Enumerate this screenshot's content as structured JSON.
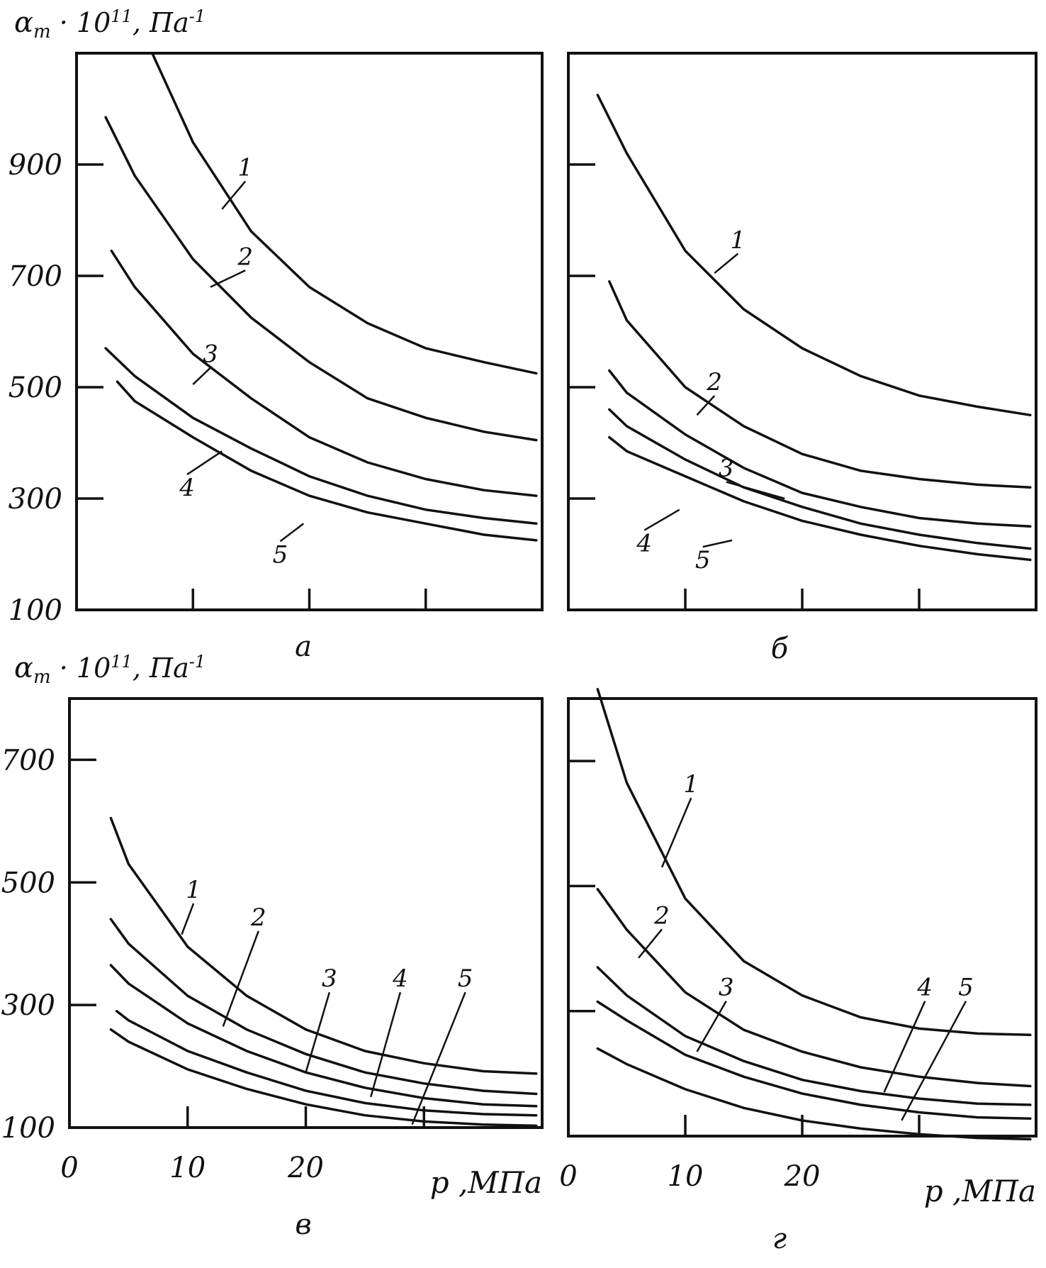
{
  "colors": {
    "ink": "#111111",
    "background": "#ffffff"
  },
  "y_axis_label": {
    "main": "α",
    "sub": "т",
    "mid": " · 10",
    "sup": "11",
    "unit": ", Па",
    "unit_sup": "-1"
  },
  "chart_data": [
    {
      "id": "a",
      "type": "line",
      "panel_label": "а",
      "xlim": [
        0,
        40
      ],
      "ylim": [
        100,
        1100
      ],
      "yticks": [
        100,
        300,
        500,
        700,
        900
      ],
      "ytick_labels": [
        "100",
        "300",
        "500",
        "700",
        "900"
      ],
      "xticks": [
        10,
        20,
        30
      ],
      "xtick_labels": [],
      "xlabel": "",
      "series": [
        {
          "name": "1",
          "x": [
            6.5,
            10,
            15,
            20,
            25,
            30,
            35,
            39.5
          ],
          "y": [
            1100,
            940,
            780,
            680,
            615,
            570,
            545,
            525
          ]
        },
        {
          "name": "2",
          "x": [
            2.5,
            5,
            10,
            15,
            20,
            25,
            30,
            35,
            39.5
          ],
          "y": [
            985,
            880,
            730,
            625,
            545,
            480,
            445,
            420,
            405
          ]
        },
        {
          "name": "3",
          "x": [
            3,
            5,
            10,
            15,
            20,
            25,
            30,
            35,
            39.5
          ],
          "y": [
            745,
            680,
            560,
            480,
            410,
            365,
            335,
            315,
            305
          ]
        },
        {
          "name": "4",
          "x": [
            2.5,
            5,
            10,
            15,
            20,
            25,
            30,
            35,
            39.5
          ],
          "y": [
            570,
            520,
            445,
            390,
            340,
            305,
            280,
            265,
            255
          ]
        },
        {
          "name": "5",
          "x": [
            3.5,
            5,
            10,
            15,
            20,
            25,
            30,
            35,
            39.5
          ],
          "y": [
            510,
            475,
            410,
            350,
            305,
            275,
            255,
            235,
            225
          ]
        }
      ]
    },
    {
      "id": "b",
      "type": "line",
      "panel_label": "б",
      "xlim": [
        0,
        40
      ],
      "ylim": [
        100,
        1100
      ],
      "yticks": [
        300,
        500,
        700,
        900
      ],
      "ytick_labels": [],
      "xticks": [
        10,
        20,
        30
      ],
      "xtick_labels": [],
      "xlabel": "",
      "series": [
        {
          "name": "1",
          "x": [
            2.5,
            5,
            10,
            15,
            20,
            25,
            30,
            35,
            39.5
          ],
          "y": [
            1025,
            920,
            745,
            640,
            570,
            520,
            485,
            465,
            450
          ]
        },
        {
          "name": "2",
          "x": [
            3.5,
            5,
            10,
            15,
            20,
            25,
            30,
            35,
            39.5
          ],
          "y": [
            690,
            620,
            500,
            430,
            380,
            350,
            335,
            325,
            320
          ]
        },
        {
          "name": "3",
          "x": [
            3.5,
            5,
            10,
            15,
            20,
            25,
            30,
            35,
            39.5
          ],
          "y": [
            530,
            490,
            415,
            355,
            310,
            285,
            265,
            255,
            250
          ]
        },
        {
          "name": "4",
          "x": [
            3.5,
            5,
            10,
            15,
            20,
            25,
            30,
            35,
            39.5
          ],
          "y": [
            460,
            430,
            370,
            320,
            285,
            255,
            235,
            220,
            210
          ]
        },
        {
          "name": "5",
          "x": [
            3.5,
            5,
            10,
            15,
            20,
            25,
            30,
            35,
            39.5
          ],
          "y": [
            410,
            385,
            340,
            295,
            260,
            235,
            215,
            200,
            190
          ]
        }
      ]
    },
    {
      "id": "v",
      "type": "line",
      "panel_label": "в",
      "xlim": [
        0,
        40
      ],
      "ylim": [
        100,
        800
      ],
      "yticks": [
        100,
        300,
        500,
        700
      ],
      "ytick_labels": [
        "100",
        "300",
        "500",
        "700"
      ],
      "xticks": [
        0,
        10,
        20,
        30,
        40
      ],
      "xtick_labels": [
        "0",
        "10",
        "20",
        "",
        ""
      ],
      "xlabel": "р ,МПа",
      "series": [
        {
          "name": "1",
          "x": [
            3.5,
            5,
            10,
            15,
            20,
            25,
            30,
            35,
            39.5
          ],
          "y": [
            605,
            530,
            395,
            315,
            260,
            225,
            205,
            192,
            188
          ]
        },
        {
          "name": "2",
          "x": [
            3.5,
            5,
            10,
            15,
            20,
            25,
            30,
            35,
            39.5
          ],
          "y": [
            440,
            400,
            315,
            260,
            220,
            190,
            172,
            160,
            155
          ]
        },
        {
          "name": "3",
          "x": [
            3.5,
            5,
            10,
            15,
            20,
            25,
            30,
            35,
            39.5
          ],
          "y": [
            365,
            335,
            270,
            225,
            190,
            165,
            148,
            138,
            135
          ]
        },
        {
          "name": "4",
          "x": [
            4,
            5,
            10,
            15,
            20,
            25,
            30,
            35,
            39.5
          ],
          "y": [
            290,
            275,
            225,
            190,
            160,
            140,
            128,
            122,
            120
          ]
        },
        {
          "name": "5",
          "x": [
            3.5,
            5,
            10,
            15,
            20,
            25,
            30,
            35,
            39.5
          ],
          "y": [
            260,
            240,
            195,
            163,
            138,
            120,
            110,
            105,
            103
          ]
        }
      ]
    },
    {
      "id": "g",
      "type": "line",
      "panel_label": "г",
      "xlim": [
        0,
        40
      ],
      "ylim": [
        100,
        800
      ],
      "yticks": [
        300,
        500,
        700
      ],
      "ytick_labels": [],
      "xticks": [
        0,
        10,
        20,
        30,
        40
      ],
      "xtick_labels": [
        "0",
        "10",
        "20",
        "",
        ""
      ],
      "xlabel": "р ,МПа",
      "series": [
        {
          "name": "1",
          "x": [
            2.5,
            5,
            10,
            15,
            20,
            25,
            30,
            35,
            39.5
          ],
          "y": [
            815,
            665,
            480,
            380,
            325,
            290,
            272,
            264,
            262
          ]
        },
        {
          "name": "2",
          "x": [
            2.5,
            5,
            10,
            15,
            20,
            25,
            30,
            35,
            39.5
          ],
          "y": [
            495,
            430,
            330,
            270,
            235,
            210,
            195,
            185,
            180
          ]
        },
        {
          "name": "3",
          "x": [
            2.5,
            5,
            10,
            15,
            20,
            25,
            30,
            35,
            39.5
          ],
          "y": [
            370,
            325,
            260,
            220,
            190,
            172,
            160,
            152,
            150
          ]
        },
        {
          "name": "4",
          "x": [
            2.5,
            5,
            10,
            15,
            20,
            25,
            30,
            35,
            39.5
          ],
          "y": [
            315,
            285,
            230,
            195,
            168,
            150,
            138,
            130,
            128
          ]
        },
        {
          "name": "5",
          "x": [
            2.5,
            5,
            10,
            15,
            20,
            25,
            30,
            35,
            39.5
          ],
          "y": [
            240,
            215,
            175,
            145,
            125,
            112,
            103,
            97,
            95
          ]
        }
      ]
    }
  ]
}
